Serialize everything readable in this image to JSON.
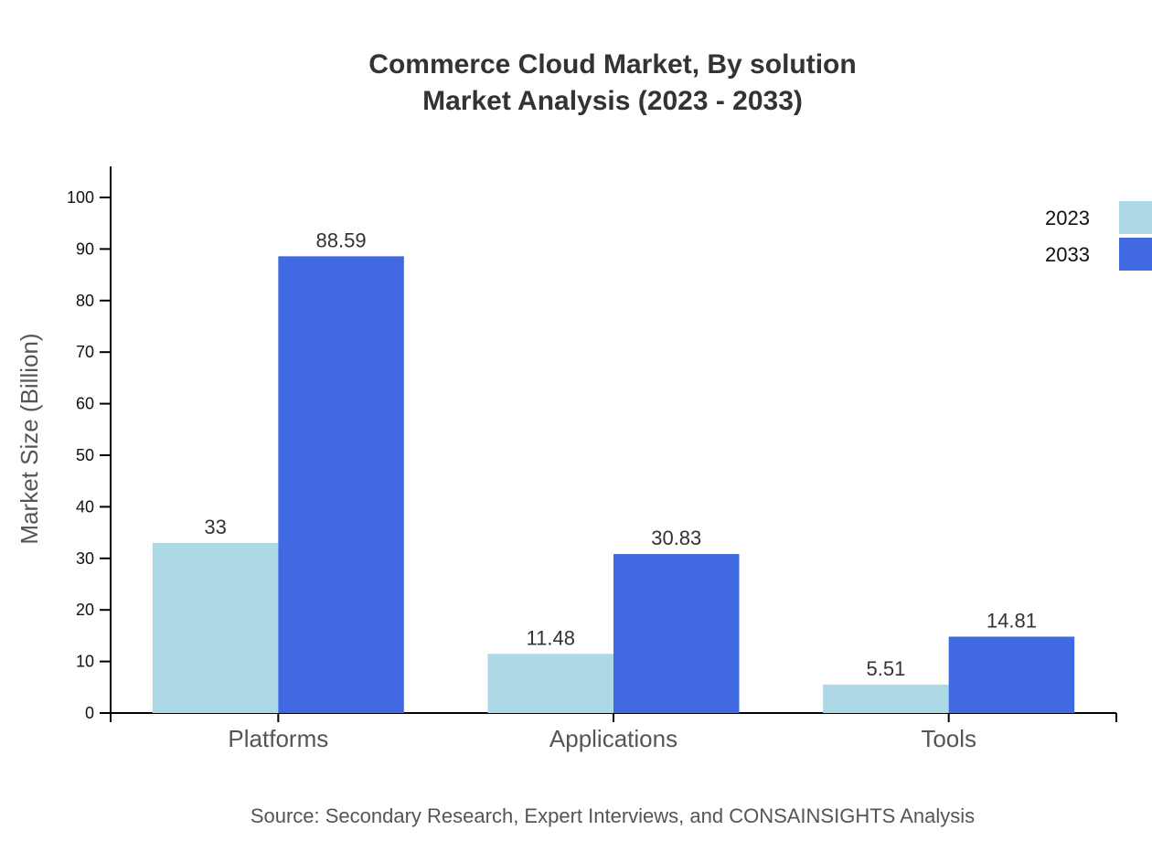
{
  "chart_data": {
    "type": "bar",
    "title": "Commerce Cloud Market, By solution",
    "subtitle": "Market Analysis (2023 - 2033)",
    "xlabel": "",
    "ylabel": "Market Size (Billion)",
    "ylim": [
      0,
      106
    ],
    "yticks": [
      0,
      10,
      20,
      30,
      40,
      50,
      60,
      70,
      80,
      90,
      100
    ],
    "categories": [
      "Platforms",
      "Applications",
      "Tools"
    ],
    "series": [
      {
        "name": "2023",
        "values": [
          33,
          11.48,
          5.51
        ],
        "labels": [
          "33",
          "11.48",
          "5.51"
        ],
        "color": "#add8e6"
      },
      {
        "name": "2033",
        "values": [
          88.59,
          30.83,
          14.81
        ],
        "labels": [
          "88.59",
          "30.83",
          "14.81"
        ],
        "color": "#4169e1"
      }
    ],
    "legend": "top-right",
    "grid": false,
    "source": "Source: Secondary Research, Expert Interviews, and CONSAINSIGHTS Analysis"
  }
}
